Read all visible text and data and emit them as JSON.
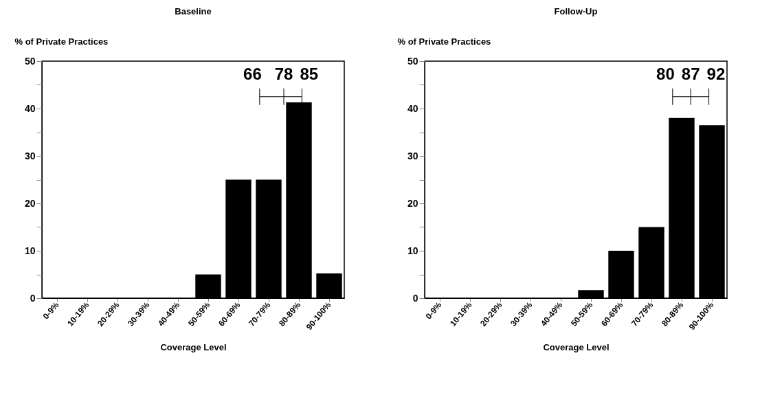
{
  "chart_data": [
    {
      "type": "bar",
      "title": "Baseline",
      "ylabel": "% of Private Practices",
      "xlabel": "Coverage Level",
      "categories": [
        "0-9%",
        "10-19%",
        "20-29%",
        "30-39%",
        "40-49%",
        "50-59%",
        "60-69%",
        "70-79%",
        "80-89%",
        "90-100%"
      ],
      "values": [
        0,
        0,
        0,
        0,
        0,
        5,
        25,
        25,
        41.3,
        5.2
      ],
      "color": "#000000",
      "ylim": [
        0,
        50
      ],
      "yticks": [
        0,
        {
          "value": 5,
          "label": null
        },
        10,
        {
          "value": 15,
          "label": null
        },
        20,
        {
          "value": 25,
          "label": null
        },
        30,
        {
          "value": 35,
          "label": null
        },
        40,
        {
          "value": 45,
          "label": null
        },
        50
      ],
      "grid": false,
      "annotations": [
        "66",
        "78",
        "85"
      ]
    },
    {
      "type": "bar",
      "title": "Follow-Up",
      "ylabel": "% of Private Practices",
      "xlabel": "Coverage Level",
      "categories": [
        "0-9%",
        "10-19%",
        "20-29%",
        "30-39%",
        "40-49%",
        "50-59%",
        "60-69%",
        "70-79%",
        "80-89%",
        "90-100%"
      ],
      "values": [
        0,
        0,
        0,
        0,
        0,
        1.7,
        10,
        15,
        38,
        36.5
      ],
      "color": "#000000",
      "ylim": [
        0,
        50
      ],
      "yticks": [
        0,
        {
          "value": 5,
          "label": null
        },
        10,
        {
          "value": 15,
          "label": null
        },
        20,
        {
          "value": 25,
          "label": null
        },
        30,
        {
          "value": 35,
          "label": null
        },
        40,
        {
          "value": 45,
          "label": null
        },
        50
      ],
      "grid": false,
      "annotations": [
        "80",
        "87",
        "92"
      ]
    }
  ]
}
